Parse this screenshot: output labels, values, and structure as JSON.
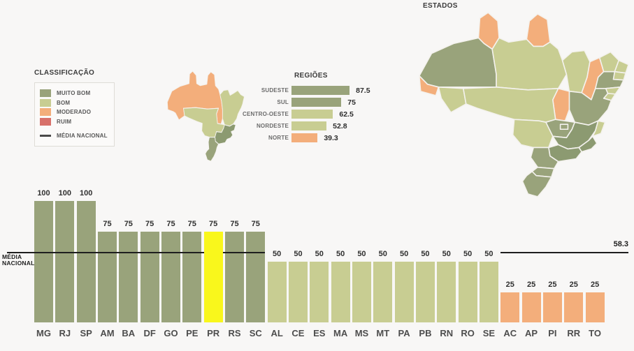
{
  "colors": {
    "muito_bom": "#99a37b",
    "muito_bom_dark": "#8c9a71",
    "bom": "#c8cd92",
    "moderado": "#f3ae7b",
    "ruim": "#d8706a",
    "highlight": "#f9f71c",
    "average_line": "#1e1e1e"
  },
  "legend": {
    "title": "CLASSIFICAÇÃO",
    "items": [
      {
        "label": "MUITO BOM",
        "class": "muito_bom"
      },
      {
        "label": "BOM",
        "class": "bom"
      },
      {
        "label": "MODERADO",
        "class": "moderado"
      },
      {
        "label": "RUIM",
        "class": "ruim"
      }
    ],
    "line_item_label": "MÉDIA NACIONAL"
  },
  "regions_map": {
    "classes": {
      "Norte": "moderado",
      "Nordeste": "bom",
      "Centro-Oeste": "bom",
      "Sudeste": "muito_bom_dark",
      "Sul": "muito_bom"
    }
  },
  "states_map": {
    "title": "ESTADOS",
    "classes": {
      "RR": "moderado",
      "AP": "moderado",
      "AM": "muito_bom",
      "PA": "bom",
      "AC": "moderado",
      "RO": "bom",
      "MA": "bom",
      "PI": "moderado",
      "CE": "bom",
      "RN": "bom",
      "PB": "bom",
      "PE": "muito_bom",
      "AL": "bom",
      "SE": "bom",
      "BA": "muito_bom",
      "TO": "moderado",
      "MT": "bom",
      "GO": "muito_bom",
      "DF": "muito_bom",
      "MS": "bom",
      "MG": "muito_bom_dark",
      "ES": "bom",
      "RJ": "muito_bom_dark",
      "SP": "muito_bom_dark",
      "PR": "muito_bom",
      "SC": "muito_bom",
      "RS": "muito_bom"
    }
  },
  "chart_data": [
    {
      "type": "bar",
      "orientation": "horizontal",
      "title": "REGIÕES",
      "categories": [
        "SUDESTE",
        "SUL",
        "CENTRO-OESTE",
        "NORDESTE",
        "NORTE"
      ],
      "values": [
        87.5,
        75,
        62.5,
        52.8,
        39.3
      ],
      "classes": [
        "muito_bom",
        "muito_bom",
        "bom",
        "bom",
        "moderado"
      ],
      "xlim": [
        0,
        100
      ],
      "grid": false,
      "legend_position": "none"
    },
    {
      "type": "bar",
      "orientation": "vertical",
      "title": "",
      "categories": [
        "MG",
        "RJ",
        "SP",
        "AM",
        "BA",
        "DF",
        "GO",
        "PE",
        "PR",
        "RS",
        "SC",
        "AL",
        "CE",
        "ES",
        "MA",
        "MS",
        "MT",
        "PA",
        "PB",
        "RN",
        "RO",
        "SE",
        "AC",
        "AP",
        "PI",
        "RR",
        "TO"
      ],
      "values": [
        100,
        100,
        100,
        75,
        75,
        75,
        75,
        75,
        75,
        75,
        75,
        50,
        50,
        50,
        50,
        50,
        50,
        50,
        50,
        50,
        50,
        50,
        25,
        25,
        25,
        25,
        25
      ],
      "classes": [
        "muito_bom",
        "muito_bom",
        "muito_bom",
        "muito_bom",
        "muito_bom",
        "muito_bom",
        "muito_bom",
        "muito_bom",
        "muito_bom",
        "muito_bom",
        "muito_bom",
        "bom",
        "bom",
        "bom",
        "bom",
        "bom",
        "bom",
        "bom",
        "bom",
        "bom",
        "bom",
        "bom",
        "moderado",
        "moderado",
        "moderado",
        "moderado",
        "moderado"
      ],
      "highlight_category": "PR",
      "reference_line": {
        "label": "MÉDIA NACIONAL",
        "value": 58.3
      },
      "ylim": [
        0,
        100
      ],
      "grid": false,
      "legend_position": "none"
    }
  ]
}
